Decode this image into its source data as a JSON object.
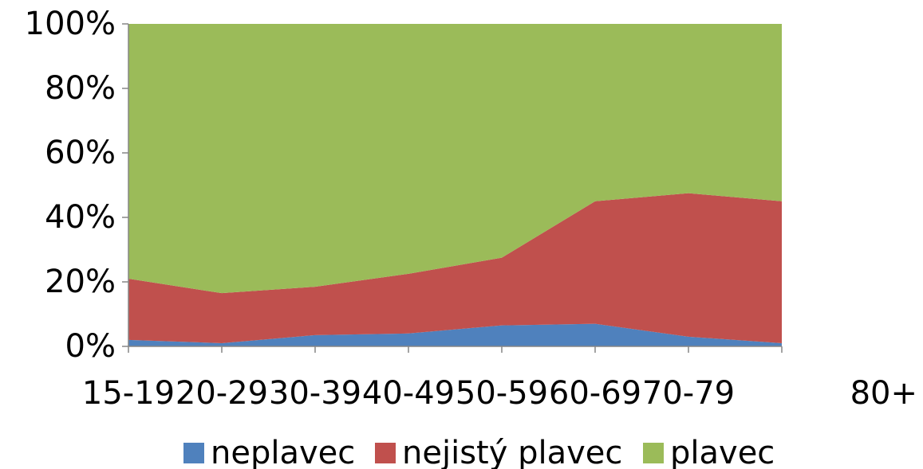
{
  "chart_data": {
    "type": "area",
    "stacking": "percent",
    "categories": [
      "15-19",
      "20-29",
      "30-39",
      "40-49",
      "50-59",
      "60-69",
      "70-79",
      "80+"
    ],
    "series": [
      {
        "name": "neplavec",
        "color": "#4f81bd",
        "values": [
          2,
          1,
          3.5,
          4,
          6.5,
          7,
          3,
          1
        ]
      },
      {
        "name": "nejistý plavec",
        "color": "#c0504d",
        "values": [
          19,
          15.5,
          15,
          18.5,
          21,
          38,
          44.5,
          44
        ]
      },
      {
        "name": "plavec",
        "color": "#9bbb59",
        "values": [
          79,
          83.5,
          81.5,
          77.5,
          72.5,
          55,
          52.5,
          55
        ]
      }
    ],
    "y_ticks": [
      "0%",
      "20%",
      "40%",
      "60%",
      "80%",
      "100%"
    ],
    "ylim": [
      0,
      100
    ],
    "grid": false,
    "legend_position": "bottom",
    "title": "",
    "xlabel": "",
    "ylabel": ""
  }
}
